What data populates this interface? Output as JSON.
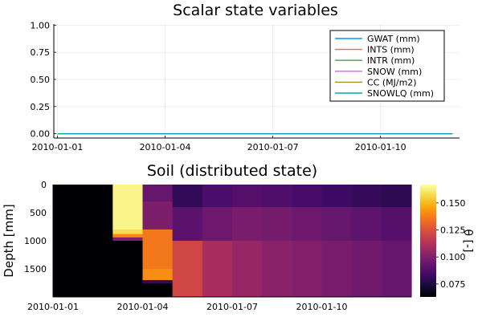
{
  "chart_data": [
    {
      "type": "line",
      "title": "Scalar state variables",
      "xlabel": "",
      "ylabel": "",
      "x_ticks": [
        "2010-01-01",
        "2010-01-04",
        "2010-01-07",
        "2010-01-10"
      ],
      "xlim": [
        "2010-01-01",
        "2010-01-12"
      ],
      "ylim": [
        0,
        1
      ],
      "y_ticks": [
        0.0,
        0.25,
        0.5,
        0.75,
        1.0
      ],
      "y_tick_labels": [
        "0.00",
        "0.25",
        "0.50",
        "0.75",
        "1.00"
      ],
      "grid": true,
      "legend_position": "top-right",
      "x": [
        "2010-01-01",
        "2010-01-02",
        "2010-01-03",
        "2010-01-04",
        "2010-01-05",
        "2010-01-06",
        "2010-01-07",
        "2010-01-08",
        "2010-01-09",
        "2010-01-10",
        "2010-01-11",
        "2010-01-12"
      ],
      "series": [
        {
          "name": "GWAT (mm)",
          "color": "#009AFA",
          "values": [
            0,
            0,
            0,
            0,
            0,
            0,
            0,
            0,
            0,
            0,
            0,
            0
          ]
        },
        {
          "name": "INTS (mm)",
          "color": "#E36F47",
          "values": [
            0,
            0,
            0,
            0,
            0,
            0,
            0,
            0,
            0,
            0,
            0,
            0
          ]
        },
        {
          "name": "INTR (mm)",
          "color": "#3EA44E",
          "values": [
            0,
            0,
            0,
            0,
            0,
            0,
            0,
            0,
            0,
            0,
            0,
            0
          ]
        },
        {
          "name": "SNOW (mm)",
          "color": "#C371D2",
          "values": [
            0,
            0,
            0,
            0,
            0,
            0,
            0,
            0,
            0,
            0,
            0,
            0
          ]
        },
        {
          "name": "CC (MJ/m2)",
          "color": "#AC8E18",
          "values": [
            0,
            0,
            0,
            0,
            0,
            0,
            0,
            0,
            0,
            0,
            0,
            0
          ]
        },
        {
          "name": "SNOWLQ (mm)",
          "color": "#00A9AD",
          "values": [
            0,
            0,
            0,
            0,
            0,
            0,
            0,
            0,
            0,
            0,
            0,
            0
          ]
        }
      ]
    },
    {
      "type": "heatmap",
      "title": "Soil (distributed state)",
      "xlabel": "",
      "ylabel": "Depth [mm]",
      "x_ticks": [
        "2010-01-01",
        "2010-01-04",
        "2010-01-07",
        "2010-01-10"
      ],
      "xlim": [
        "2010-01-01",
        "2010-01-13"
      ],
      "y_ticks": [
        0,
        500,
        1000,
        1500
      ],
      "y_tick_labels": [
        "0",
        "500",
        "1000",
        "1500"
      ],
      "ylim": [
        2000,
        0
      ],
      "colorbar": {
        "label": "θ [-]",
        "range": [
          0.063,
          0.167
        ],
        "ticks": [
          0.075,
          0.1,
          0.125,
          0.15
        ],
        "tick_labels": [
          "0.075",
          "0.100",
          "0.125",
          "0.150"
        ],
        "colormap": "inferno"
      },
      "columns": [
        {
          "date": "2010-01-01",
          "segments": [
            {
              "from": 0,
              "to": 2000,
              "value": 0.063
            }
          ]
        },
        {
          "date": "2010-01-02",
          "segments": [
            {
              "from": 0,
              "to": 2000,
              "value": 0.063
            }
          ]
        },
        {
          "date": "2010-01-03",
          "segments": [
            {
              "from": 0,
              "to": 800,
              "value": 0.164
            },
            {
              "from": 800,
              "to": 880,
              "value": 0.158
            },
            {
              "from": 880,
              "to": 940,
              "value": 0.14
            },
            {
              "from": 940,
              "to": 1000,
              "value": 0.1
            },
            {
              "from": 1000,
              "to": 2000,
              "value": 0.063
            }
          ]
        },
        {
          "date": "2010-01-04",
          "segments": [
            {
              "from": 0,
              "to": 300,
              "value": 0.093
            },
            {
              "from": 300,
              "to": 800,
              "value": 0.099
            },
            {
              "from": 800,
              "to": 1500,
              "value": 0.136
            },
            {
              "from": 1500,
              "to": 1700,
              "value": 0.141
            },
            {
              "from": 1700,
              "to": 1760,
              "value": 0.08
            },
            {
              "from": 1760,
              "to": 2000,
              "value": 0.063
            }
          ]
        },
        {
          "date": "2010-01-05",
          "segments": [
            {
              "from": 0,
              "to": 400,
              "value": 0.08
            },
            {
              "from": 400,
              "to": 1000,
              "value": 0.09
            },
            {
              "from": 1000,
              "to": 2000,
              "value": 0.121
            }
          ]
        },
        {
          "date": "2010-01-06",
          "segments": [
            {
              "from": 0,
              "to": 400,
              "value": 0.086
            },
            {
              "from": 400,
              "to": 1000,
              "value": 0.095
            },
            {
              "from": 1000,
              "to": 2000,
              "value": 0.11
            }
          ]
        },
        {
          "date": "2010-01-07",
          "segments": [
            {
              "from": 0,
              "to": 400,
              "value": 0.089
            },
            {
              "from": 400,
              "to": 1000,
              "value": 0.098
            },
            {
              "from": 1000,
              "to": 2000,
              "value": 0.105
            }
          ]
        },
        {
          "date": "2010-01-08",
          "segments": [
            {
              "from": 0,
              "to": 400,
              "value": 0.087
            },
            {
              "from": 400,
              "to": 1000,
              "value": 0.097
            },
            {
              "from": 1000,
              "to": 2000,
              "value": 0.102
            }
          ]
        },
        {
          "date": "2010-01-09",
          "segments": [
            {
              "from": 0,
              "to": 400,
              "value": 0.085
            },
            {
              "from": 400,
              "to": 1000,
              "value": 0.095
            },
            {
              "from": 1000,
              "to": 2000,
              "value": 0.1
            }
          ]
        },
        {
          "date": "2010-01-10",
          "segments": [
            {
              "from": 0,
              "to": 400,
              "value": 0.083
            },
            {
              "from": 400,
              "to": 1000,
              "value": 0.093
            },
            {
              "from": 1000,
              "to": 2000,
              "value": 0.098
            }
          ]
        },
        {
          "date": "2010-01-11",
          "segments": [
            {
              "from": 0,
              "to": 400,
              "value": 0.081
            },
            {
              "from": 400,
              "to": 1000,
              "value": 0.091
            },
            {
              "from": 1000,
              "to": 2000,
              "value": 0.096
            }
          ]
        },
        {
          "date": "2010-01-12",
          "segments": [
            {
              "from": 0,
              "to": 400,
              "value": 0.079
            },
            {
              "from": 400,
              "to": 1000,
              "value": 0.089
            },
            {
              "from": 1000,
              "to": 2000,
              "value": 0.094
            }
          ]
        }
      ]
    }
  ]
}
